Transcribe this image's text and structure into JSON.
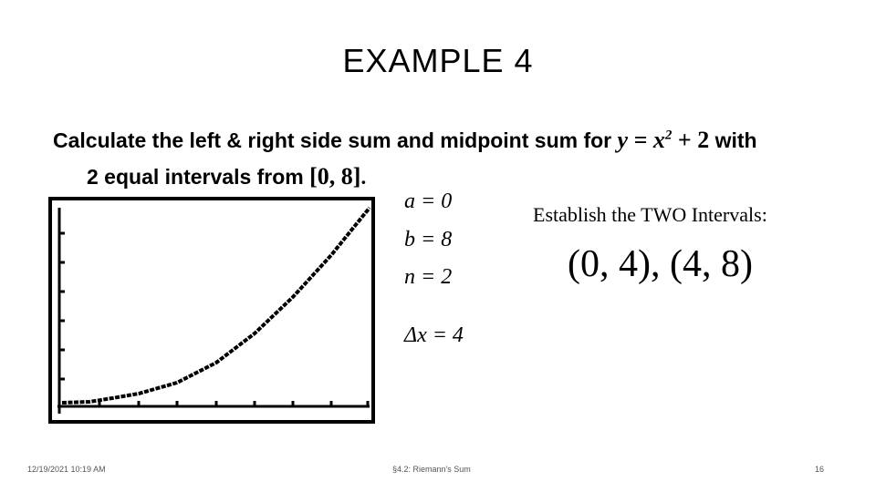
{
  "header": {
    "title": "EXAMPLE 4"
  },
  "problem": {
    "line1": "Calculate the left & right side sum and midpoint sum for",
    "equation": {
      "base": "y = x",
      "exponent": "2",
      "rest": "+ 2"
    },
    "line1_end": "with",
    "line2": "2 equal intervals from",
    "interval": "[0, 8]",
    "line2_end": "."
  },
  "definitions": [
    "a = 0",
    "b = 8",
    "n = 2",
    "Δx = 4"
  ],
  "intervals": {
    "heading": "Establish the TWO Intervals:",
    "list": "(0, 4), (4, 8)"
  },
  "footer": {
    "date": "12/19/2021 10:19 AM",
    "section": "§4.2: Riemann's Sum",
    "page": "16"
  }
}
